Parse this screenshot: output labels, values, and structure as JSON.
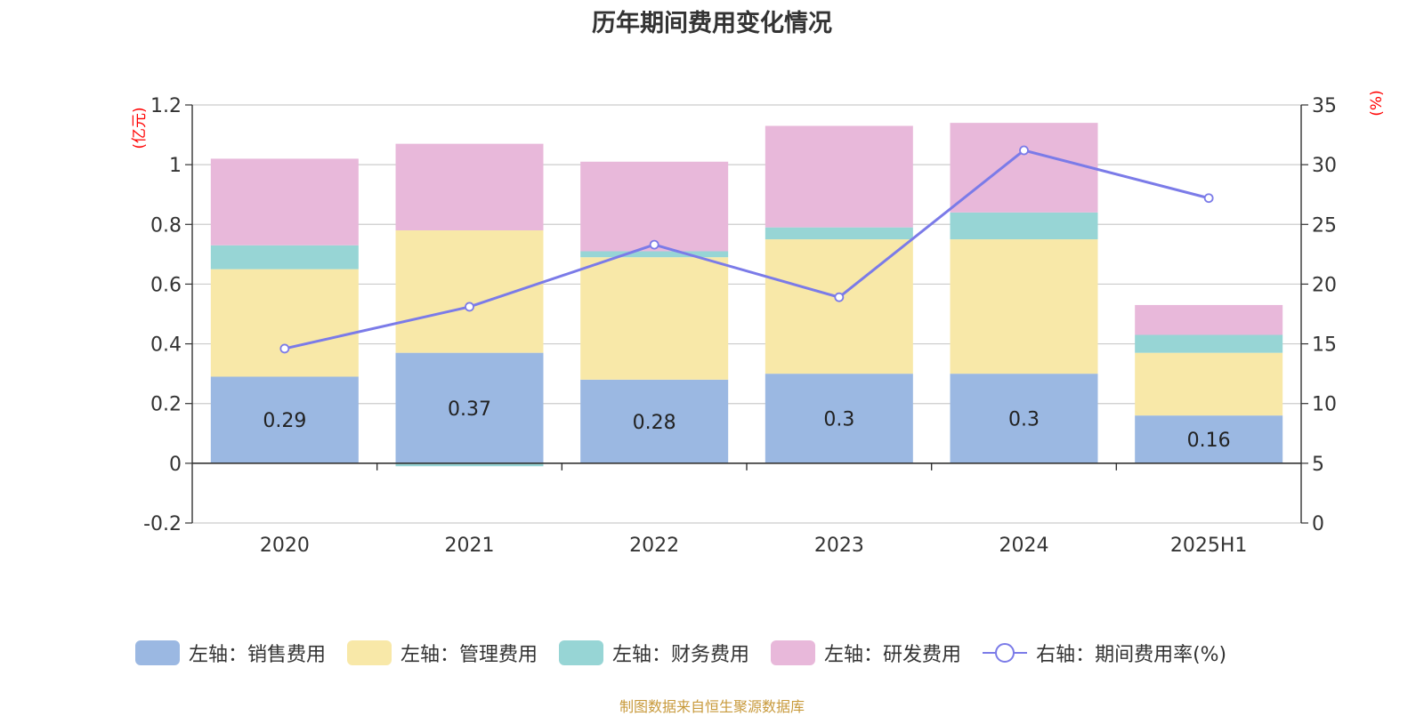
{
  "chart_data": {
    "type": "bar",
    "title": "历年期间费用变化情况",
    "categories": [
      "2020",
      "2021",
      "2022",
      "2023",
      "2024",
      "2025H1"
    ],
    "left_axis": {
      "unit_label": "(亿元)",
      "ylim": [
        -0.2,
        1.2
      ],
      "ticks": [
        "-0.2",
        "0",
        "0.2",
        "0.4",
        "0.6",
        "0.8",
        "1",
        "1.2"
      ]
    },
    "right_axis": {
      "unit_label": "(%)",
      "ylim": [
        0,
        35
      ],
      "ticks": [
        "0",
        "5",
        "10",
        "15",
        "20",
        "25",
        "30",
        "35"
      ]
    },
    "series": [
      {
        "name": "左轴：销售费用",
        "type": "bar",
        "stack": true,
        "color": "#9bb8e2",
        "values": [
          0.29,
          0.37,
          0.28,
          0.3,
          0.3,
          0.16
        ],
        "data_labels": [
          "0.29",
          "0.37",
          "0.28",
          "0.3",
          "0.3",
          "0.16"
        ]
      },
      {
        "name": "左轴：管理费用",
        "type": "bar",
        "stack": true,
        "color": "#f8e8a8",
        "values": [
          0.36,
          0.41,
          0.41,
          0.45,
          0.45,
          0.21
        ]
      },
      {
        "name": "左轴：财务费用",
        "type": "bar",
        "stack": true,
        "color": "#97d5d5",
        "values": [
          0.08,
          -0.01,
          0.02,
          0.04,
          0.09,
          0.06
        ]
      },
      {
        "name": "左轴：研发费用",
        "type": "bar",
        "stack": true,
        "color": "#e8b8da",
        "values": [
          0.29,
          0.29,
          0.3,
          0.34,
          0.3,
          0.1
        ]
      },
      {
        "name": "右轴：期间费用率(%)",
        "type": "line",
        "axis": "right",
        "color": "#7b7be8",
        "values": [
          14.6,
          18.1,
          23.3,
          18.9,
          31.2,
          27.2
        ]
      }
    ],
    "grid": true,
    "legend_position": "bottom"
  },
  "source_note": "制图数据来自恒生聚源数据库"
}
